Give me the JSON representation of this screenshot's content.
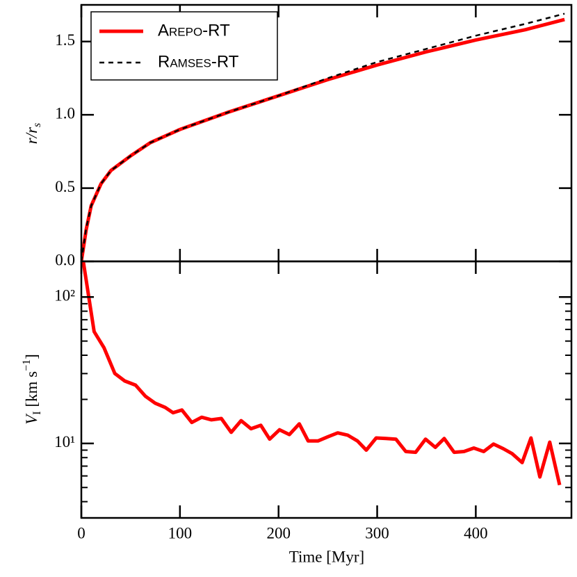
{
  "chart_data": [
    {
      "type": "line",
      "ylabel": [
        "r/r",
        "s"
      ],
      "x": [
        0,
        5,
        10,
        20,
        30,
        50,
        70,
        100,
        150,
        200,
        250,
        300,
        350,
        400,
        450,
        490
      ],
      "series": [
        {
          "name": "Arepo-RT",
          "color": "#ff0000",
          "dash": false,
          "values": [
            0,
            0.22,
            0.38,
            0.53,
            0.62,
            0.72,
            0.81,
            0.9,
            1.02,
            1.13,
            1.24,
            1.34,
            1.43,
            1.51,
            1.58,
            1.65
          ]
        },
        {
          "name": "Ramses-RT",
          "color": "#000000",
          "dash": true,
          "values": [
            0,
            0.23,
            0.38,
            0.53,
            0.62,
            0.72,
            0.81,
            0.9,
            1.02,
            1.13,
            1.25,
            1.36,
            1.45,
            1.54,
            1.62,
            1.69
          ]
        }
      ],
      "xlim": [
        0,
        497
      ],
      "xticks": [
        0,
        100,
        200,
        300,
        400
      ],
      "ylim": [
        0,
        1.75
      ],
      "yticks": [
        {
          "value": 0,
          "label": "0.0"
        },
        0.5,
        {
          "value": 1,
          "label": "1.0"
        },
        1.5
      ],
      "legend": "upper left"
    },
    {
      "type": "line",
      "xlabel": "Time [Myr]",
      "ylabel": [
        "V",
        "I",
        " [km s",
        "−1",
        "]"
      ],
      "log_y": true,
      "x": [
        2,
        13,
        23,
        34,
        44,
        55,
        65,
        75,
        85,
        93,
        102,
        112,
        122,
        132,
        142,
        152,
        162,
        172,
        182,
        191,
        201,
        211,
        221,
        230,
        240,
        250,
        260,
        270,
        280,
        289,
        299,
        309,
        319,
        329,
        339,
        349,
        359,
        368,
        378,
        388,
        398,
        408,
        418,
        428,
        437,
        447,
        456,
        465,
        475,
        485
      ],
      "series": [
        {
          "color": "#ff0000",
          "values": [
            175,
            58,
            45,
            30,
            26.7,
            25,
            21,
            18.8,
            17.6,
            16.2,
            16.9,
            13.9,
            15.1,
            14.5,
            14.8,
            11.9,
            14.3,
            12.6,
            13.3,
            10.7,
            12.4,
            11.5,
            13.6,
            10.4,
            10.4,
            11.1,
            11.8,
            11.4,
            10.4,
            9.0,
            10.9,
            10.8,
            10.7,
            8.8,
            8.7,
            10.7,
            9.4,
            10.8,
            8.7,
            8.8,
            9.3,
            8.8,
            9.9,
            9.2,
            8.5,
            7.4,
            10.9,
            5.9,
            10.2,
            5.2
          ]
        }
      ],
      "xlim": [
        0,
        497
      ],
      "xticks": [
        0,
        100,
        200,
        300,
        400
      ],
      "ylim": [
        3.1,
        175
      ],
      "yticks": [
        {
          "value": 10,
          "label": "10¹"
        },
        {
          "value": 100,
          "label": "10²"
        }
      ],
      "minor_yticks": [
        4,
        5,
        6,
        7,
        8,
        9,
        20,
        30,
        40,
        50,
        60,
        70,
        80,
        90
      ]
    }
  ]
}
